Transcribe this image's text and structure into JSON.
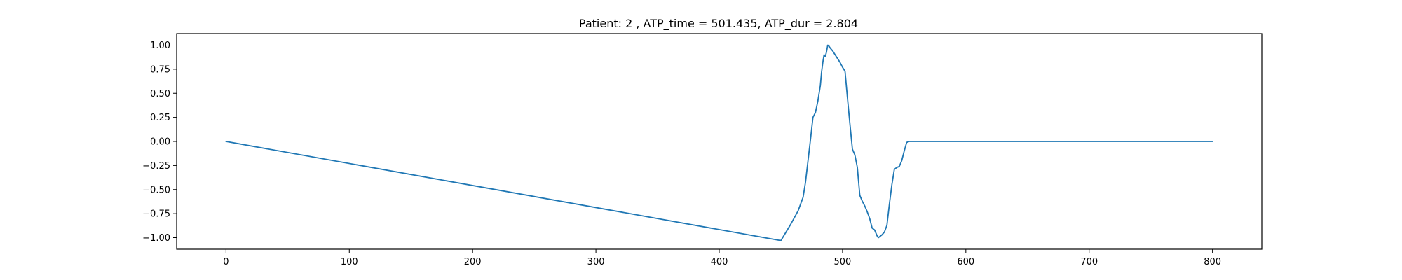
{
  "chart_data": {
    "type": "line",
    "title": "Patient: 2 , ATP_time = 501.435, ATP_dur = 2.804",
    "xlabel": "",
    "ylabel": "",
    "xlim": [
      -40,
      840
    ],
    "ylim": [
      -1.12,
      1.12
    ],
    "xticks": [
      0,
      100,
      200,
      300,
      400,
      500,
      600,
      700,
      800
    ],
    "xtick_labels": [
      "0",
      "100",
      "200",
      "300",
      "400",
      "500",
      "600",
      "700",
      "800"
    ],
    "yticks": [
      1.0,
      0.75,
      0.5,
      0.25,
      0.0,
      -0.25,
      -0.5,
      -0.75,
      -1.0
    ],
    "ytick_labels": [
      "1.00",
      "0.75",
      "0.50",
      "0.25",
      "0.00",
      "−0.25",
      "−0.50",
      "−0.75",
      "−1.00"
    ],
    "grid": false,
    "legend": "none",
    "colors": {
      "line": "#1f77b4",
      "axes": "#000000",
      "background": "#ffffff"
    },
    "series": [
      {
        "x": [
          0,
          450,
          458,
          464,
          468,
          470,
          472,
          474,
          476,
          478,
          480,
          482,
          483,
          484,
          485,
          486,
          487,
          488,
          489,
          490,
          492,
          494,
          496,
          498,
          500,
          502,
          504,
          506,
          508,
          510,
          512,
          514,
          516,
          518,
          520,
          522,
          524,
          526,
          528,
          529,
          530,
          531,
          532,
          534,
          536,
          538,
          540,
          542,
          544,
          546,
          548,
          550,
          552,
          554,
          556,
          560,
          600,
          700,
          800
        ],
        "y": [
          0.0,
          -1.03,
          -0.86,
          -0.72,
          -0.58,
          -0.42,
          -0.2,
          0.02,
          0.25,
          0.3,
          0.42,
          0.58,
          0.72,
          0.82,
          0.9,
          0.88,
          0.93,
          1.0,
          0.99,
          0.97,
          0.94,
          0.9,
          0.86,
          0.82,
          0.77,
          0.73,
          0.45,
          0.18,
          -0.08,
          -0.14,
          -0.27,
          -0.56,
          -0.62,
          -0.67,
          -0.73,
          -0.8,
          -0.9,
          -0.92,
          -0.98,
          -1.0,
          -0.99,
          -0.98,
          -0.97,
          -0.94,
          -0.87,
          -0.65,
          -0.45,
          -0.29,
          -0.27,
          -0.26,
          -0.2,
          -0.1,
          -0.01,
          0.0,
          0.0,
          0.0,
          0.0,
          0.0,
          0.0
        ]
      }
    ]
  }
}
